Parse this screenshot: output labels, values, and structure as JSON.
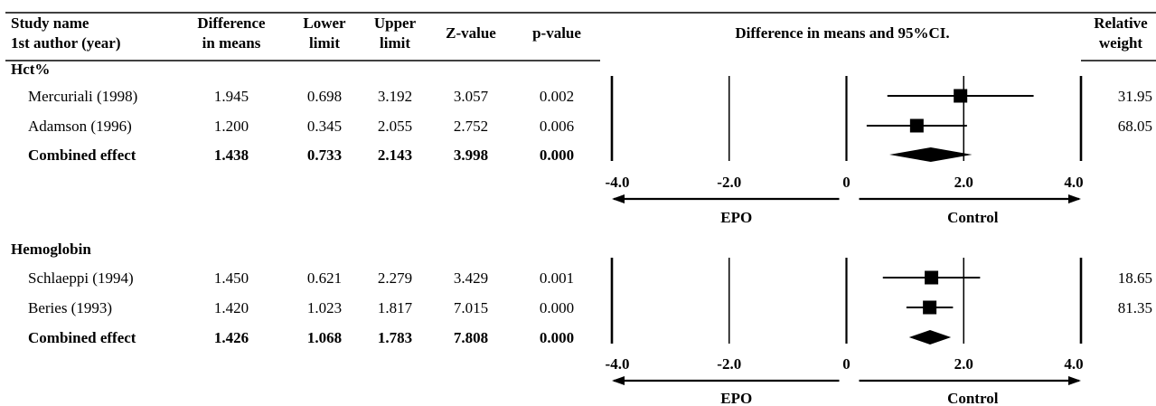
{
  "headers": {
    "study_1": "Study name",
    "study_2": "1st author (year)",
    "diff_1": "Difference",
    "diff_2": "in means",
    "lower_1": "Lower",
    "lower_2": "limit",
    "upper_1": "Upper",
    "upper_2": "limit",
    "z": "Z-value",
    "p": "p-value",
    "plot_title": "Difference in means and 95%CI.",
    "weight_1": "Relative",
    "weight_2": "weight"
  },
  "chart_data": {
    "type": "forest",
    "title": "Difference in means and 95%CI.",
    "xlim": [
      -4,
      4
    ],
    "x_ticks": [
      "-4.0",
      "-2.0",
      "0",
      "2.0",
      "4.0"
    ],
    "left_direction_label": "EPO",
    "right_direction_label": "Control",
    "sections": [
      {
        "name": "Hct%",
        "rows": [
          {
            "study": "Mercuriali (1998)",
            "diff": "1.945",
            "lower": "0.698",
            "upper": "3.192",
            "z": "3.057",
            "p": "0.002",
            "weight": "31.95",
            "d": 1.945,
            "lo": 0.698,
            "hi": 3.192,
            "combined": false
          },
          {
            "study": "Adamson (1996)",
            "diff": "1.200",
            "lower": "0.345",
            "upper": "2.055",
            "z": "2.752",
            "p": "0.006",
            "weight": "68.05",
            "d": 1.2,
            "lo": 0.345,
            "hi": 2.055,
            "combined": false
          },
          {
            "study": "Combined effect",
            "diff": "1.438",
            "lower": "0.733",
            "upper": "2.143",
            "z": "3.998",
            "p": "0.000",
            "weight": "",
            "d": 1.438,
            "lo": 0.733,
            "hi": 2.143,
            "combined": true
          }
        ]
      },
      {
        "name": "Hemoglobin",
        "rows": [
          {
            "study": "Schlaeppi (1994)",
            "diff": "1.450",
            "lower": "0.621",
            "upper": "2.279",
            "z": "3.429",
            "p": "0.001",
            "weight": "18.65",
            "d": 1.45,
            "lo": 0.621,
            "hi": 2.279,
            "combined": false
          },
          {
            "study": "Beries (1993)",
            "diff": "1.420",
            "lower": "1.023",
            "upper": "1.817",
            "z": "7.015",
            "p": "0.000",
            "weight": "81.35",
            "d": 1.42,
            "lo": 1.023,
            "hi": 1.817,
            "combined": false
          },
          {
            "study": "Combined effect",
            "diff": "1.426",
            "lower": "1.068",
            "upper": "1.783",
            "z": "7.808",
            "p": "0.000",
            "weight": "",
            "d": 1.426,
            "lo": 1.068,
            "hi": 1.783,
            "combined": true
          }
        ]
      }
    ]
  }
}
